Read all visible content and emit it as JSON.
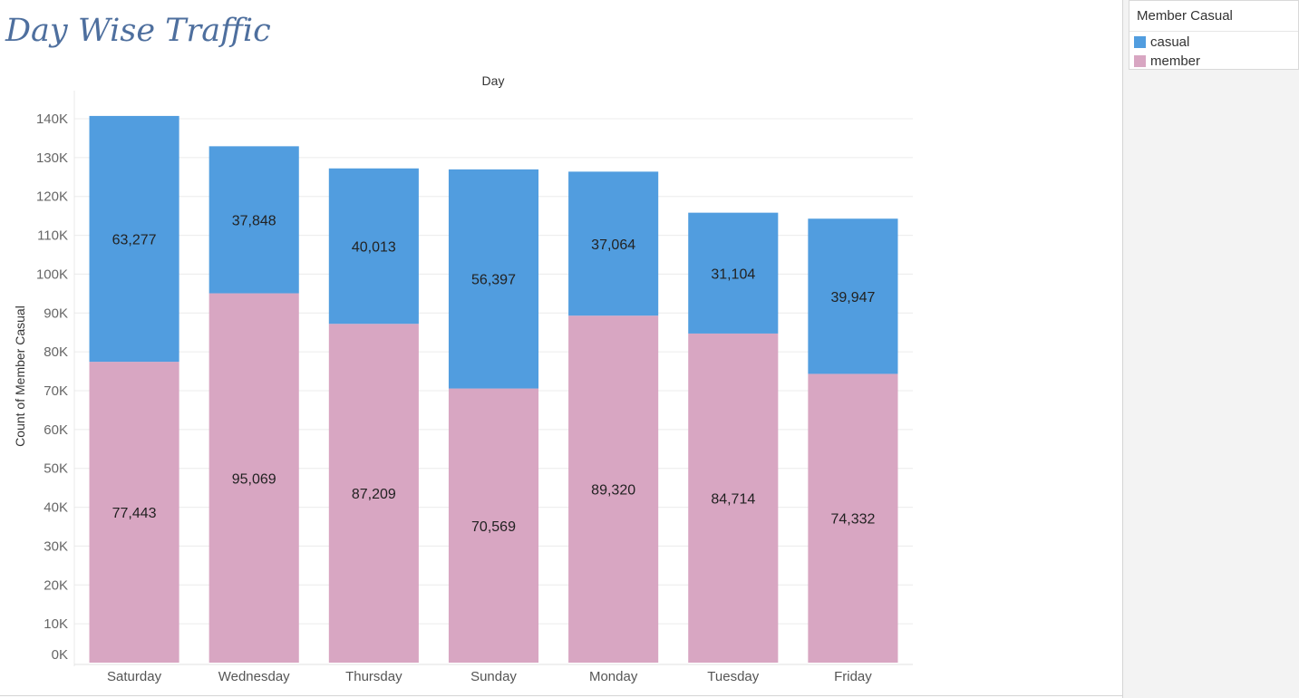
{
  "title": "Day Wise Traffic",
  "legend": {
    "title": "Member Casual",
    "items": [
      {
        "label": "casual",
        "color": "#519ddf"
      },
      {
        "label": "member",
        "color": "#d8a6c2"
      }
    ]
  },
  "chart_data": {
    "type": "bar",
    "stacked": true,
    "header_label": "Day",
    "xlabel": "",
    "ylabel": "Count of Member Casual",
    "categories": [
      "Saturday",
      "Wednesday",
      "Thursday",
      "Sunday",
      "Monday",
      "Tuesday",
      "Friday"
    ],
    "series": [
      {
        "name": "member",
        "color": "#d8a6c2",
        "values": [
          77443,
          95069,
          87209,
          70569,
          89320,
          84714,
          74332
        ],
        "labels": [
          "77,443",
          "95,069",
          "87,209",
          "70,569",
          "89,320",
          "84,714",
          "74,332"
        ]
      },
      {
        "name": "casual",
        "color": "#519ddf",
        "values": [
          63277,
          37848,
          40013,
          56397,
          37064,
          31104,
          39947
        ],
        "labels": [
          "63,277",
          "37,848",
          "40,013",
          "56,397",
          "37,064",
          "31,104",
          "39,947"
        ]
      }
    ],
    "ylim": [
      0,
      140000
    ],
    "yticks": [
      0,
      10000,
      20000,
      30000,
      40000,
      50000,
      60000,
      70000,
      80000,
      90000,
      100000,
      110000,
      120000,
      130000,
      140000
    ],
    "ytick_labels": [
      "0K",
      "10K",
      "20K",
      "30K",
      "40K",
      "50K",
      "60K",
      "70K",
      "80K",
      "90K",
      "100K",
      "110K",
      "120K",
      "130K",
      "140K"
    ],
    "grid": true,
    "legend_position": "top-right"
  }
}
